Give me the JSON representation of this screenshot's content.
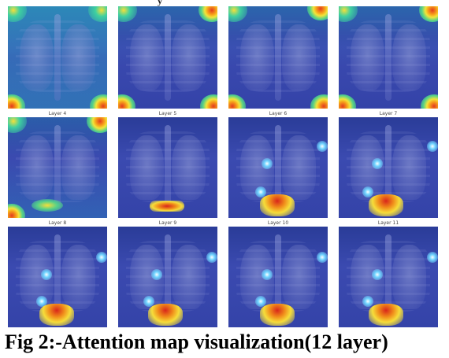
{
  "figure": {
    "caption": "Fig 2:-Attention map visualization(12 layer)",
    "top_cropped_text": "y"
  },
  "panels": [
    {
      "label": ""
    },
    {
      "label": ""
    },
    {
      "label": ""
    },
    {
      "label": ""
    },
    {
      "label": "Layer 4"
    },
    {
      "label": "Layer 5"
    },
    {
      "label": "Layer 6"
    },
    {
      "label": "Layer 7"
    },
    {
      "label": "Layer 8"
    },
    {
      "label": "Layer 9"
    },
    {
      "label": "Layer 10"
    },
    {
      "label": "Layer 11"
    }
  ],
  "colors": {
    "background_blue": "#3443a8",
    "hot_red": "#e23b1f",
    "hot_yellow": "#f6dd3a",
    "hot_cyan": "#6fd4ff"
  }
}
